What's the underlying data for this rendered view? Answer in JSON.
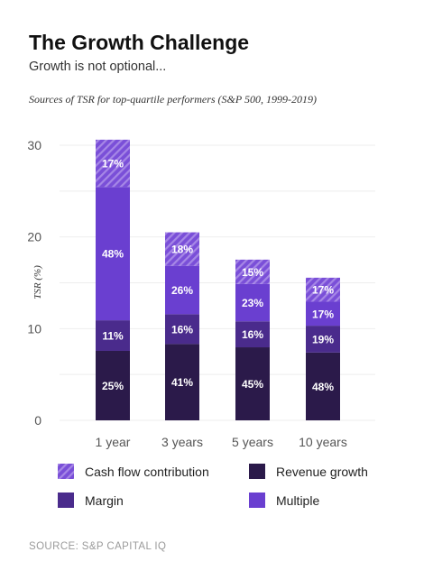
{
  "header": {
    "title": "The Growth Challenge",
    "subtitle": "Growth is not optional...",
    "chart_caption": "Sources of TSR for top-quartile performers (S&P 500, 1999-2019)"
  },
  "legend": {
    "cash_flow": "Cash flow contribution",
    "revenue_growth": "Revenue growth",
    "margin": "Margin",
    "multiple": "Multiple"
  },
  "source": "SOURCE: S&P CAPITAL IQ",
  "colors": {
    "revenue_growth": "#2b1a4a",
    "margin": "#4a2b8c",
    "multiple": "#6a3fd0",
    "cash_flow": "#7a4fd8",
    "cash_flow_hatch": "#a687e6",
    "grid": "#eeeeee",
    "tick": "#555555"
  },
  "chart_data": {
    "type": "bar",
    "stacked": true,
    "categories": [
      "1 year",
      "3 years",
      "5 years",
      "10 years"
    ],
    "totals": [
      30.3,
      20.3,
      17.7,
      15.4
    ],
    "ylabel": "TSR (%)",
    "ylim": [
      0,
      30
    ],
    "yticks": [
      0,
      10,
      20,
      30
    ],
    "grid": true,
    "legend_position": "bottom",
    "series": [
      {
        "name": "Revenue growth",
        "key": "revenue_growth",
        "shares": [
          25,
          41,
          45,
          48
        ],
        "labels": [
          "25%",
          "41%",
          "45%",
          "48%"
        ]
      },
      {
        "name": "Margin",
        "key": "margin",
        "shares": [
          11,
          16,
          16,
          19
        ],
        "labels": [
          "11%",
          "16%",
          "16%",
          "19%"
        ]
      },
      {
        "name": "Multiple",
        "key": "multiple",
        "shares": [
          48,
          26,
          23,
          17
        ],
        "labels": [
          "48%",
          "26%",
          "23%",
          "17%"
        ]
      },
      {
        "name": "Cash flow contribution",
        "key": "cash_flow",
        "shares": [
          17,
          18,
          15,
          17
        ],
        "labels": [
          "17%",
          "18%",
          "15%",
          "17%"
        ]
      }
    ]
  }
}
